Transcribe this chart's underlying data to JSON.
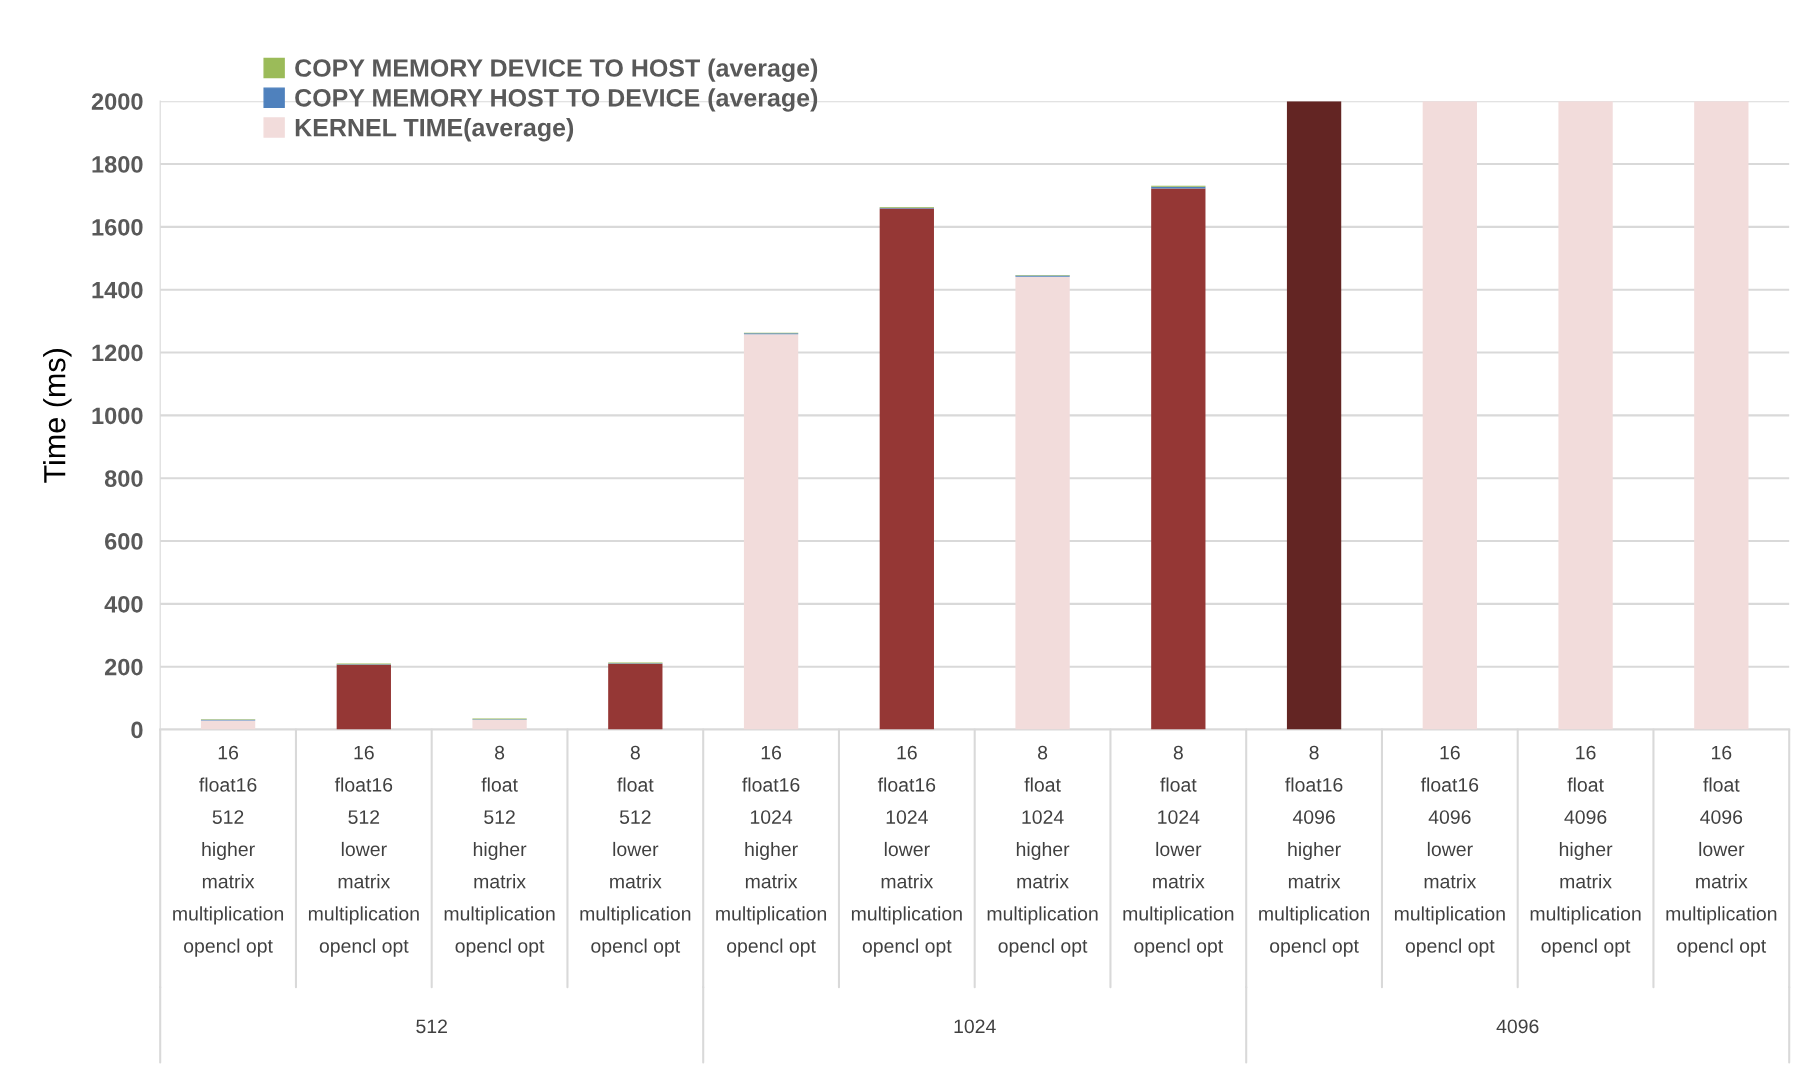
{
  "chart_data": {
    "type": "bar",
    "stacked": true,
    "ylabel": "Time (ms)",
    "categories": [
      "16\nfloat16\n512\nhigher\nmatrix\nmultiplication\nopencl opt",
      "16\nfloat16\n512\nlower\nmatrix\nmultiplication\nopencl opt",
      "8\nfloat\n512\nhigher\nmatrix\nmultiplication\nopencl opt",
      "8\nfloat\n512\nlower\nmatrix\nmultiplication\nopencl opt",
      "16\nfloat16\n1024\nhigher\nmatrix\nmultiplication\nopencl opt",
      "16\nfloat16\n1024\nlower\nmatrix\nmultiplication\nopencl opt",
      "8\nfloat\n1024\nhigher\nmatrix\nmultiplication\nopencl opt",
      "8\nfloat\n1024\nlower\nmatrix\nmultiplication\nopencl opt",
      "8\nfloat16\n4096\nhigher\nmatrix\nmultiplication\nopencl opt",
      "16\nfloat16\n4096\nlower\nmatrix\nmultiplication\nopencl opt",
      "16\nfloat\n4096\nhigher\nmatrix\nmultiplication\nopencl opt",
      "16\nfloat\n4096\nlower\nmatrix\nmultiplication\nopencl opt"
    ],
    "series": [
      {
        "name": "KERNEL TIME(average)",
        "color": "#f2dcdb",
        "colors": [
          "#f2dcdb",
          "#953735",
          "#f2dcdb",
          "#953735",
          "#f2dcdb",
          "#953735",
          "#f2dcdb",
          "#953735",
          "#632523",
          "#f2dcdb",
          "#f2dcdb",
          "#f2dcdb"
        ],
        "values": [
          29,
          206,
          31,
          209,
          1258,
          1658,
          1441,
          1722,
          2000,
          2000,
          2000,
          2000
        ]
      },
      {
        "name": "COPY MEMORY HOST TO DEVICE (average)",
        "color": "#4f81bd",
        "values": [
          2,
          2,
          2,
          2,
          3,
          3,
          4,
          6,
          null,
          null,
          null,
          null
        ]
      },
      {
        "name": "COPY MEMORY DEVICE TO HOST (average)",
        "color": "#9bbb59",
        "values": [
          2,
          2,
          2,
          2,
          2,
          2,
          2,
          3,
          null,
          null,
          null,
          null
        ]
      }
    ],
    "annotations": [
      "512",
      "1024",
      "4096"
    ],
    "ylim": [
      0,
      2000
    ],
    "yticks": [
      0,
      200,
      400,
      600,
      800,
      1000,
      1200,
      1400,
      1600,
      1800,
      2000
    ],
    "grid": "y",
    "legend": "top left"
  }
}
